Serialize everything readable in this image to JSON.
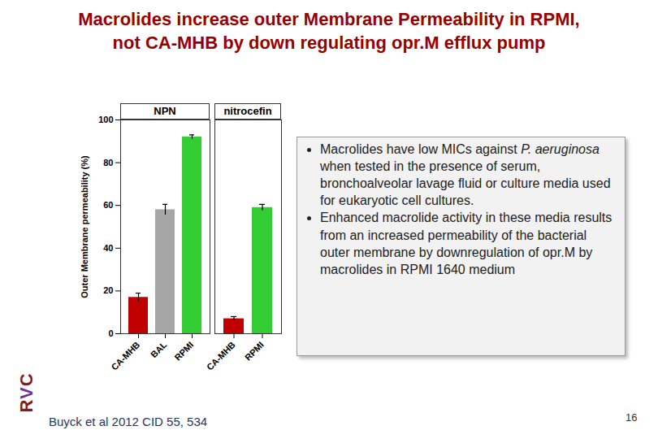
{
  "slide": {
    "title_lines": [
      "Macrolides increase outer Membrane Permeability in RPMI,",
      "not CA-MHB by down regulating opr.M efflux pump"
    ],
    "bullets": [
      [
        {
          "text": "Macrolides have low MICs against "
        },
        {
          "text": "P. aeruginosa",
          "italic": true
        },
        {
          "text": " when tested in the presence of serum, bronchoalveolar lavage fluid or culture media used for eukaryotic cell cultures."
        }
      ],
      [
        {
          "text": "Enhanced macrolide activity in these media results from an increased permeability of the bacterial outer membrane by downregulation of opr.M by macrolides  in RPMI 1640 medium"
        }
      ]
    ],
    "citation": "Buyck et al 2012  CID 55, 534",
    "logo": "RVC",
    "page": "16"
  },
  "chart_data": [
    {
      "type": "bar",
      "title": "NPN",
      "ylabel": "Outer Membrane permeability (%)",
      "categories": [
        "CA-MHB",
        "BAL",
        "RPMI"
      ],
      "values": [
        17,
        58,
        92
      ],
      "errors": [
        2,
        2.5,
        1
      ],
      "colors": [
        "#c00000",
        "#a6a6a6",
        "#33cc33"
      ],
      "ylim": [
        0,
        100
      ],
      "yticks": [
        0,
        20,
        40,
        60,
        80,
        100
      ]
    },
    {
      "type": "bar",
      "title": "nitrocefin",
      "categories": [
        "CA-MHB",
        "RPMI"
      ],
      "values": [
        7,
        59
      ],
      "errors": [
        1,
        1.5
      ],
      "colors": [
        "#c00000",
        "#33cc33"
      ],
      "ylim": [
        0,
        100
      ],
      "yticks": [
        0,
        20,
        40,
        60,
        80,
        100
      ],
      "tick_labels": "x"
    }
  ]
}
